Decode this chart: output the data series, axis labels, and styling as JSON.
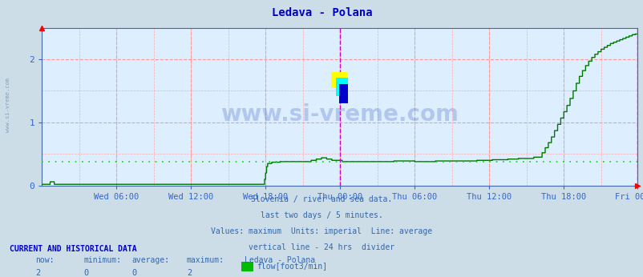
{
  "title": "Ledava - Polana",
  "title_color": "#0000cc",
  "bg_color": "#ccdde8",
  "plot_bg_color": "#ddeeff",
  "line_color": "#007700",
  "line_width": 1.0,
  "avg_line_color": "#00dd00",
  "avg_line_y": 0.38,
  "vline_color": "#cc00cc",
  "vline_positions": [
    288,
    575
  ],
  "ylim": [
    0,
    2.5
  ],
  "yticks": [
    0,
    1,
    2
  ],
  "tick_color": "#3366cc",
  "text_info_color": "#3366aa",
  "watermark_text": "www.si-vreme.com",
  "watermark_color": "#3355bb",
  "watermark_alpha": 0.25,
  "ylabel_left_text": "www.si-vreme.com",
  "bottom_text_line1": "Slovenia / river and sea data.",
  "bottom_text_line2": "last two days / 5 minutes.",
  "bottom_text_line3": "Values: maximum  Units: imperial  Line: average",
  "bottom_text_line4": "vertical line - 24 hrs  divider",
  "footer_label1": "CURRENT AND HISTORICAL DATA",
  "footer_col1": "now:",
  "footer_col2": "minimum:",
  "footer_col3": "average:",
  "footer_col4": "maximum:",
  "footer_col5": "Ledava - Polana",
  "footer_val1": "2",
  "footer_val2": "0",
  "footer_val3": "0",
  "footer_val4": "2",
  "footer_legend": "flow[foot3/min]",
  "num_points": 576,
  "x_tick_labels": [
    "Wed 06:00",
    "Wed 12:00",
    "Wed 18:00",
    "Thu 00:00",
    "Thu 06:00",
    "Thu 12:00",
    "Thu 18:00",
    "Fri 00:00"
  ],
  "x_tick_positions": [
    72,
    144,
    216,
    288,
    360,
    432,
    504,
    575
  ]
}
